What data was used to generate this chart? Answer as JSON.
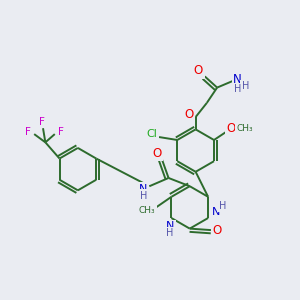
{
  "bg_color": "#eaecf2",
  "bond_color": "#2d6b2d",
  "atom_colors": {
    "O": "#ee0000",
    "N": "#0000cc",
    "Cl": "#22aa22",
    "F": "#cc00cc",
    "H": "#5555aa",
    "C": "#2d6b2d"
  },
  "figsize": [
    3.0,
    3.0
  ],
  "dpi": 100
}
